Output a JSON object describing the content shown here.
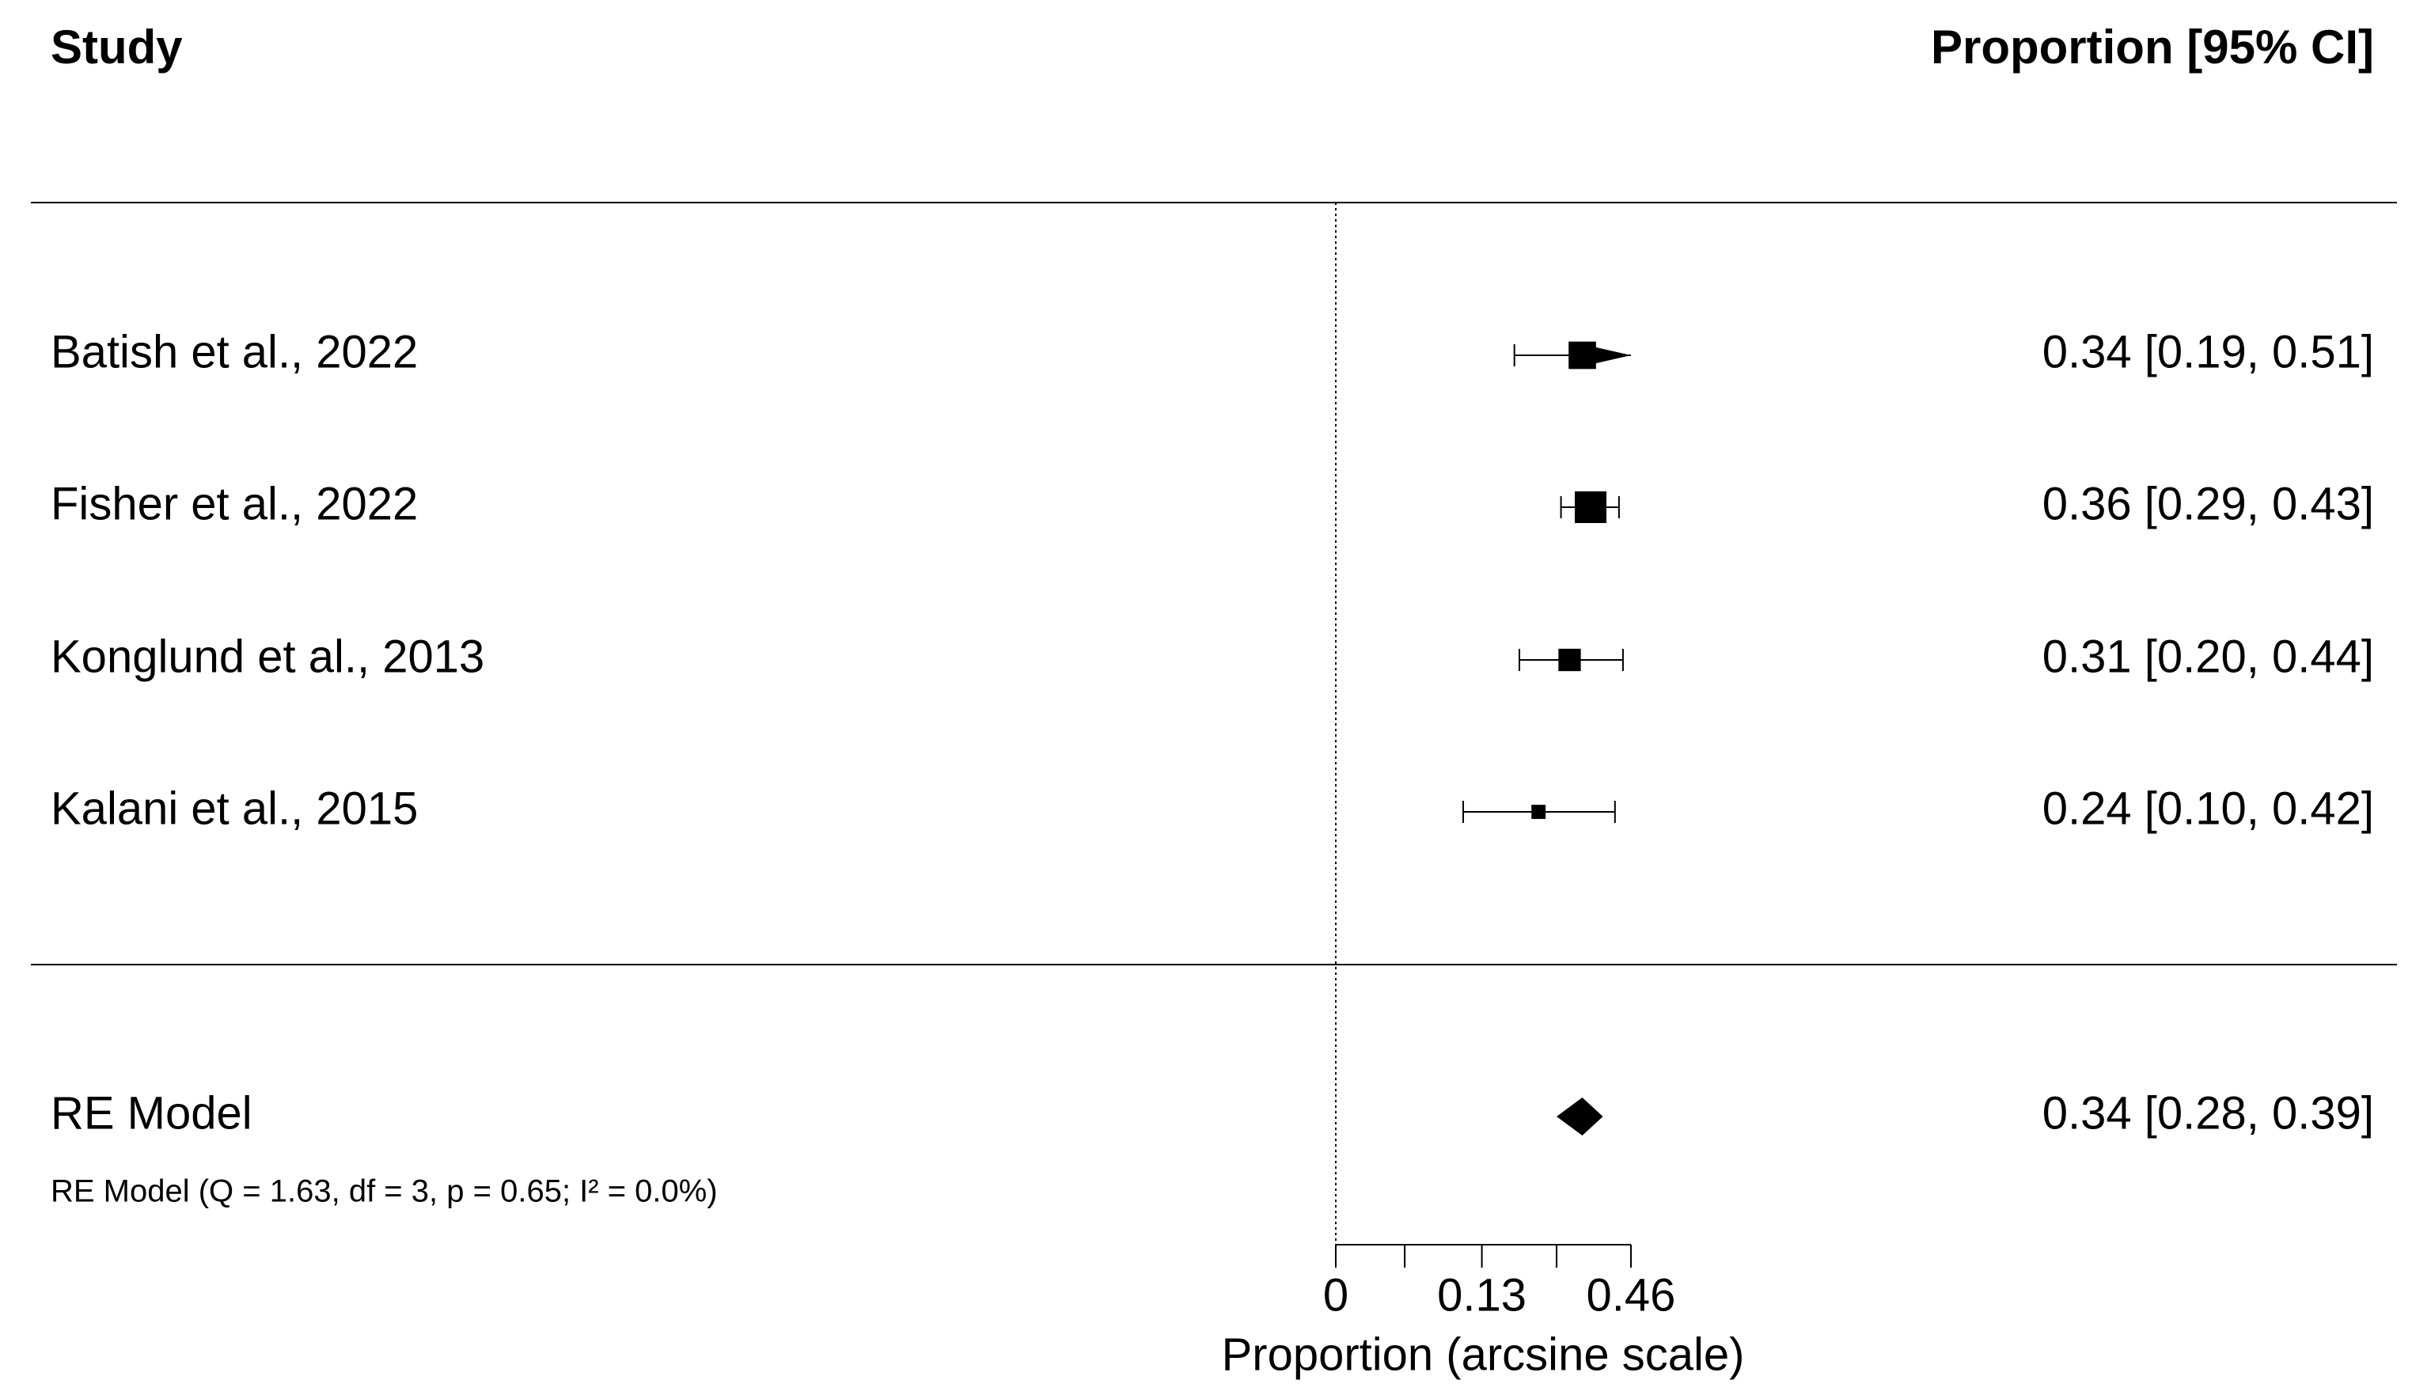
{
  "chart_data": {
    "type": "forest",
    "header_left": "Study",
    "header_right": "Proportion [95% CI]",
    "studies": [
      "Batish et al., 2022",
      "Fisher et al., 2022",
      "Konglund et al., 2013",
      "Kalani et al., 2015"
    ],
    "values": [
      0.34,
      0.36,
      0.31,
      0.24
    ],
    "ci_lower": [
      0.19,
      0.29,
      0.2,
      0.1
    ],
    "ci_upper": [
      0.51,
      0.43,
      0.44,
      0.42
    ],
    "value_labels": [
      "0.34 [0.19, 0.51]",
      "0.36 [0.29, 0.43]",
      "0.31 [0.20, 0.44]",
      "0.24 [0.10, 0.42]"
    ],
    "weights": [
      30,
      40,
      20,
      8
    ],
    "summary": {
      "name": "RE Model",
      "value": 0.34,
      "ci_lower": 0.28,
      "ci_upper": 0.39,
      "value_label": "0.34 [0.28, 0.39]"
    },
    "note": "RE Model (Q = 1.63, df = 3, p = 0.65; I² = 0.0%)",
    "xlabel": "Proportion (arcsine scale)",
    "xscale": "arcsine",
    "xlim": [
      0,
      0.46
    ],
    "xticks": [
      0,
      0.13,
      0.46
    ],
    "xminorticks": [
      0.03,
      0.28
    ],
    "refline": 0,
    "color": "#000000"
  }
}
